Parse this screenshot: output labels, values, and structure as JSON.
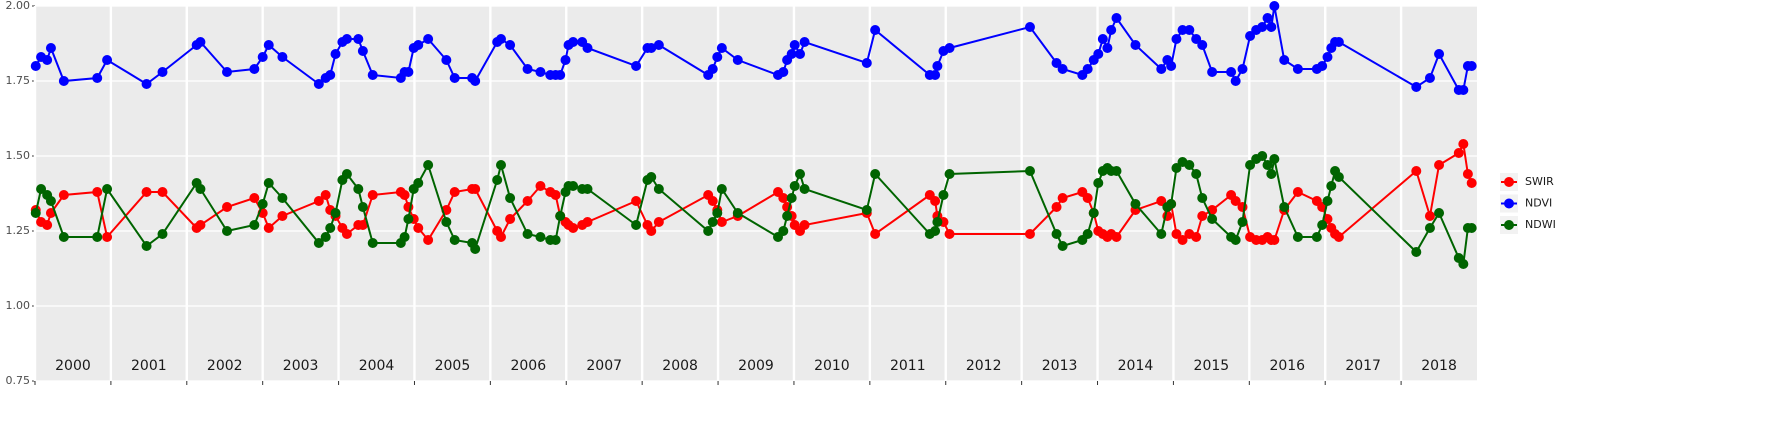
{
  "chart_data": {
    "type": "line",
    "x": [
      2000.01,
      2000.08,
      2000.16,
      2000.21,
      2000.38,
      2000.82,
      2000.95,
      2001.47,
      2001.68,
      2002.13,
      2002.18,
      2002.53,
      2002.89,
      2003.0,
      2003.08,
      2003.26,
      2003.74,
      2003.83,
      2003.89,
      2003.96,
      2004.05,
      2004.11,
      2004.26,
      2004.32,
      2004.45,
      2004.82,
      2004.87,
      2004.92,
      2004.99,
      2005.05,
      2005.18,
      2005.42,
      2005.53,
      2005.76,
      2005.8,
      2006.09,
      2006.14,
      2006.26,
      2006.49,
      2006.66,
      2006.79,
      2006.86,
      2006.92,
      2006.99,
      2007.03,
      2007.09,
      2007.21,
      2007.28,
      2007.92,
      2008.07,
      2008.12,
      2008.22,
      2008.87,
      2008.93,
      2008.99,
      2009.05,
      2009.26,
      2009.79,
      2009.86,
      2009.91,
      2009.97,
      2010.01,
      2010.08,
      2010.14,
      2010.96,
      2011.07,
      2011.79,
      2011.86,
      2011.89,
      2011.97,
      2012.05,
      2013.11,
      2013.46,
      2013.54,
      2013.8,
      2013.87,
      2013.95,
      2014.01,
      2014.07,
      2014.13,
      2014.18,
      2014.25,
      2014.5,
      2014.84,
      2014.92,
      2014.97,
      2015.04,
      2015.12,
      2015.21,
      2015.3,
      2015.38,
      2015.51,
      2015.76,
      2015.82,
      2015.91,
      2016.01,
      2016.09,
      2016.17,
      2016.24,
      2016.29,
      2016.33,
      2016.46,
      2016.64,
      2016.89,
      2016.96,
      2017.03,
      2017.08,
      2017.13,
      2017.18,
      2018.2,
      2018.38,
      2018.5,
      2018.76,
      2018.82,
      2018.88,
      2018.93
    ],
    "series": [
      {
        "name": "SWIR",
        "color": "#ff0000",
        "values": [
          1.32,
          1.28,
          1.27,
          1.31,
          1.37,
          1.38,
          1.23,
          1.38,
          1.38,
          1.26,
          1.27,
          1.33,
          1.36,
          1.31,
          1.26,
          1.3,
          1.35,
          1.37,
          1.32,
          1.3,
          1.26,
          1.24,
          1.27,
          1.27,
          1.37,
          1.38,
          1.37,
          1.33,
          1.29,
          1.26,
          1.22,
          1.32,
          1.38,
          1.39,
          1.39,
          1.25,
          1.23,
          1.29,
          1.35,
          1.4,
          1.38,
          1.37,
          1.3,
          1.28,
          1.27,
          1.26,
          1.27,
          1.28,
          1.35,
          1.27,
          1.25,
          1.28,
          1.37,
          1.35,
          1.32,
          1.28,
          1.3,
          1.38,
          1.36,
          1.33,
          1.3,
          1.27,
          1.25,
          1.27,
          1.31,
          1.24,
          1.37,
          1.35,
          1.3,
          1.28,
          1.24,
          1.24,
          1.33,
          1.36,
          1.38,
          1.36,
          1.31,
          1.25,
          1.24,
          1.23,
          1.24,
          1.23,
          1.32,
          1.35,
          1.3,
          1.34,
          1.24,
          1.22,
          1.24,
          1.23,
          1.3,
          1.32,
          1.37,
          1.35,
          1.33,
          1.23,
          1.22,
          1.22,
          1.23,
          1.22,
          1.22,
          1.32,
          1.38,
          1.35,
          1.33,
          1.29,
          1.26,
          1.24,
          1.23,
          1.45,
          1.3,
          1.47,
          1.51,
          1.54,
          1.44,
          1.41
        ]
      },
      {
        "name": "NDVI",
        "color": "#0000ff",
        "values": [
          1.8,
          1.83,
          1.82,
          1.86,
          1.75,
          1.76,
          1.82,
          1.74,
          1.78,
          1.87,
          1.88,
          1.78,
          1.79,
          1.83,
          1.87,
          1.83,
          1.74,
          1.76,
          1.77,
          1.84,
          1.88,
          1.89,
          1.89,
          1.85,
          1.77,
          1.76,
          1.78,
          1.78,
          1.86,
          1.87,
          1.89,
          1.82,
          1.76,
          1.76,
          1.75,
          1.88,
          1.89,
          1.87,
          1.79,
          1.78,
          1.77,
          1.77,
          1.77,
          1.82,
          1.87,
          1.88,
          1.88,
          1.86,
          1.8,
          1.86,
          1.86,
          1.87,
          1.77,
          1.79,
          1.83,
          1.86,
          1.82,
          1.77,
          1.78,
          1.82,
          1.84,
          1.87,
          1.84,
          1.88,
          1.81,
          1.92,
          1.77,
          1.77,
          1.8,
          1.85,
          1.86,
          1.93,
          1.81,
          1.79,
          1.77,
          1.79,
          1.82,
          1.84,
          1.89,
          1.86,
          1.92,
          1.96,
          1.87,
          1.79,
          1.82,
          1.8,
          1.89,
          1.92,
          1.92,
          1.89,
          1.87,
          1.78,
          1.78,
          1.75,
          1.79,
          1.9,
          1.92,
          1.93,
          1.96,
          1.93,
          2.0,
          1.82,
          1.79,
          1.79,
          1.8,
          1.83,
          1.86,
          1.88,
          1.88,
          1.73,
          1.76,
          1.84,
          1.72,
          1.72,
          1.8,
          1.8
        ]
      },
      {
        "name": "NDWI",
        "color": "#006400",
        "values": [
          1.31,
          1.39,
          1.37,
          1.35,
          1.23,
          1.23,
          1.39,
          1.2,
          1.24,
          1.41,
          1.39,
          1.25,
          1.27,
          1.34,
          1.41,
          1.36,
          1.21,
          1.23,
          1.26,
          1.31,
          1.42,
          1.44,
          1.39,
          1.33,
          1.21,
          1.21,
          1.23,
          1.29,
          1.39,
          1.41,
          1.47,
          1.28,
          1.22,
          1.21,
          1.19,
          1.42,
          1.47,
          1.36,
          1.24,
          1.23,
          1.22,
          1.22,
          1.3,
          1.38,
          1.4,
          1.4,
          1.39,
          1.39,
          1.27,
          1.42,
          1.43,
          1.39,
          1.25,
          1.28,
          1.31,
          1.39,
          1.31,
          1.23,
          1.25,
          1.3,
          1.36,
          1.4,
          1.44,
          1.39,
          1.32,
          1.44,
          1.24,
          1.25,
          1.28,
          1.37,
          1.44,
          1.45,
          1.24,
          1.2,
          1.22,
          1.24,
          1.31,
          1.41,
          1.45,
          1.46,
          1.45,
          1.45,
          1.34,
          1.24,
          1.33,
          1.34,
          1.46,
          1.48,
          1.47,
          1.44,
          1.36,
          1.29,
          1.23,
          1.22,
          1.28,
          1.47,
          1.49,
          1.5,
          1.47,
          1.44,
          1.49,
          1.33,
          1.23,
          1.23,
          1.27,
          1.35,
          1.4,
          1.45,
          1.43,
          1.18,
          1.26,
          1.31,
          1.16,
          1.14,
          1.26,
          1.26
        ]
      }
    ],
    "xlim": [
      2000,
      2019
    ],
    "xticks": [
      2000,
      2001,
      2002,
      2003,
      2004,
      2005,
      2006,
      2007,
      2008,
      2009,
      2010,
      2011,
      2012,
      2013,
      2014,
      2015,
      2016,
      2017,
      2018
    ],
    "ylim": [
      0.75,
      2.0
    ],
    "yticks": [
      0.75,
      {
        "value": 1.0,
        "label": "1.00"
      },
      1.25,
      {
        "value": 1.5,
        "label": "1.50"
      },
      1.75,
      {
        "value": 2.0,
        "label": "2.00"
      }
    ],
    "grid": true,
    "legend": "right"
  }
}
